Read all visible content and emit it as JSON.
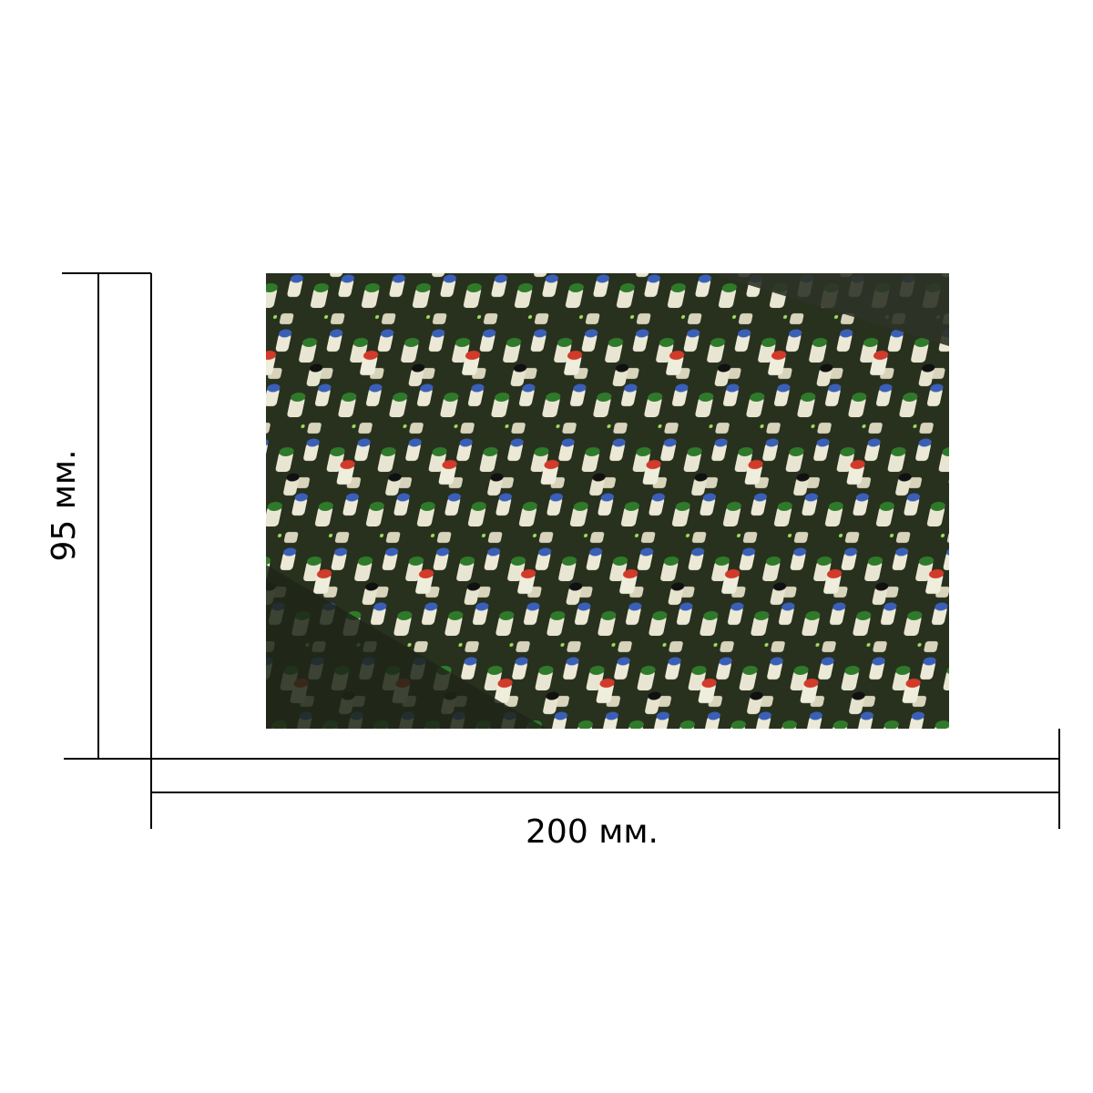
{
  "dimensions": {
    "height_label": "95 мм.",
    "width_label": "200 мм."
  }
}
